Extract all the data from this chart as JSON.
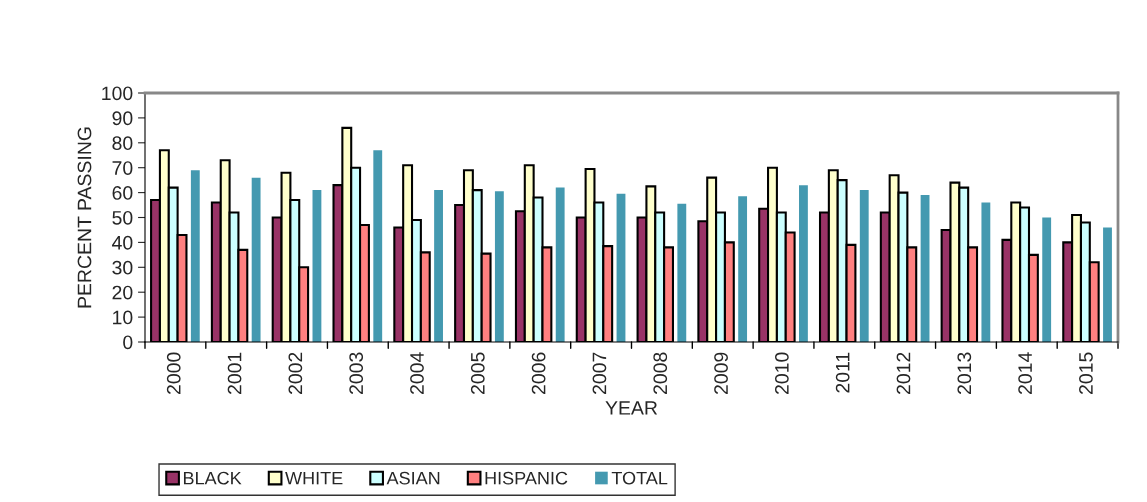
{
  "chart_data": {
    "type": "bar",
    "xlabel": "YEAR",
    "ylabel": "PERCENT PASSING",
    "categories": [
      "2000",
      "2001",
      "2002",
      "2003",
      "2004",
      "2005",
      "2006",
      "2007",
      "2008",
      "2009",
      "2010",
      "2011",
      "2012",
      "2013",
      "2014",
      "2015"
    ],
    "series": [
      {
        "name": "BLACK",
        "color": "#993366",
        "values": [
          57,
          56,
          50,
          63,
          46,
          55,
          52.5,
          50,
          50,
          48.5,
          53.5,
          52,
          52,
          45,
          41,
          40
        ]
      },
      {
        "name": "WHITE",
        "color": "#ffffcc",
        "values": [
          77,
          73,
          68,
          86,
          71,
          69,
          71,
          69.5,
          62.5,
          66,
          70,
          69,
          67,
          64,
          56,
          51
        ]
      },
      {
        "name": "ASIAN",
        "color": "#ccffff",
        "values": [
          62,
          52,
          57,
          70,
          49,
          61,
          58,
          56,
          52,
          52,
          52,
          65,
          60,
          62,
          54,
          48
        ]
      },
      {
        "name": "HISPANIC",
        "color": "#ff8080",
        "values": [
          43,
          37,
          30,
          47,
          36,
          35.5,
          38,
          38.5,
          38,
          40,
          44,
          39,
          38,
          38,
          35,
          32
        ]
      },
      {
        "name": "TOTAL",
        "color": "#4499b0",
        "values": [
          69,
          66,
          61,
          77,
          61,
          60.5,
          62,
          59.5,
          55.5,
          58.5,
          63,
          61,
          59,
          56,
          50,
          46
        ]
      }
    ],
    "ylim": [
      0,
      100
    ],
    "yticks": [
      0,
      10,
      20,
      30,
      40,
      50,
      60,
      70,
      80,
      90,
      100
    ],
    "grid": false,
    "legend": "bottom"
  }
}
